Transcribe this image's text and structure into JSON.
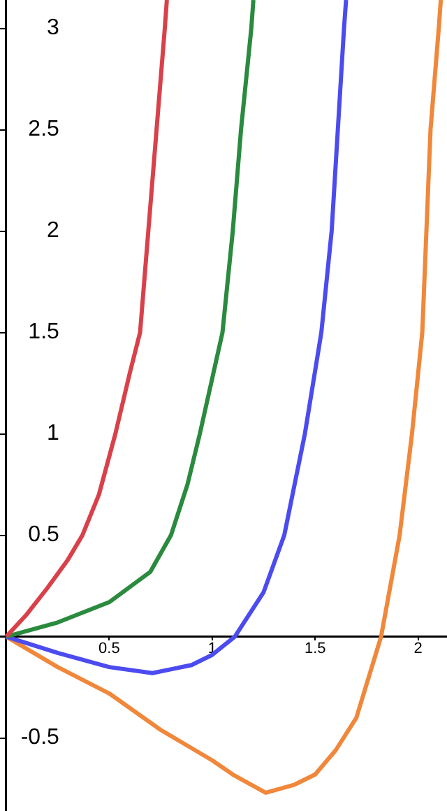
{
  "chart_data": {
    "type": "line",
    "marker": "none",
    "grid": false,
    "legend": false,
    "xlim": [
      -0.03,
      2.14
    ],
    "ylim": [
      -0.86,
      3.14
    ],
    "xticks": [
      0.5,
      1,
      1.5,
      2
    ],
    "yticks": [
      -0.5,
      0.5,
      1,
      1.5,
      2,
      2.5,
      3
    ],
    "series": [
      {
        "color": "#d9414a",
        "x": [
          0,
          0.1,
          0.2,
          0.3,
          0.37,
          0.45,
          0.53,
          0.6,
          0.65,
          0.69,
          0.73,
          0.77,
          0.78
        ],
        "values": [
          0,
          0.11,
          0.24,
          0.38,
          0.5,
          0.7,
          1,
          1.3,
          1.5,
          2,
          2.5,
          3,
          3.14
        ]
      },
      {
        "color": "#2a8a3e",
        "x": [
          0,
          0.25,
          0.5,
          0.7,
          0.8,
          0.88,
          0.94,
          1.05,
          1.1,
          1.14,
          1.19,
          1.2
        ],
        "values": [
          0,
          0.07,
          0.17,
          0.32,
          0.5,
          0.75,
          1,
          1.5,
          2,
          2.5,
          3,
          3.14
        ]
      },
      {
        "color": "#4b4bef",
        "x": [
          0,
          0.25,
          0.5,
          0.71,
          0.9,
          1,
          1.11,
          1.25,
          1.35,
          1.45,
          1.53,
          1.58,
          1.61,
          1.64,
          1.65
        ],
        "values": [
          0,
          -0.08,
          -0.15,
          -0.18,
          -0.14,
          -0.09,
          0,
          0.22,
          0.5,
          1,
          1.5,
          2,
          2.5,
          3,
          3.14
        ]
      },
      {
        "color": "#f0873a",
        "x": [
          0,
          0.25,
          0.5,
          0.75,
          1,
          1.1,
          1.26,
          1.4,
          1.5,
          1.6,
          1.7,
          1.82,
          1.91,
          1.97,
          2.02,
          2.04,
          2.06,
          2.1,
          2.11
        ],
        "values": [
          0,
          -0.15,
          -0.28,
          -0.46,
          -0.61,
          -0.68,
          -0.77,
          -0.73,
          -0.68,
          -0.56,
          -0.4,
          0,
          0.5,
          1,
          1.5,
          2,
          2.5,
          3,
          3.14
        ]
      }
    ]
  }
}
